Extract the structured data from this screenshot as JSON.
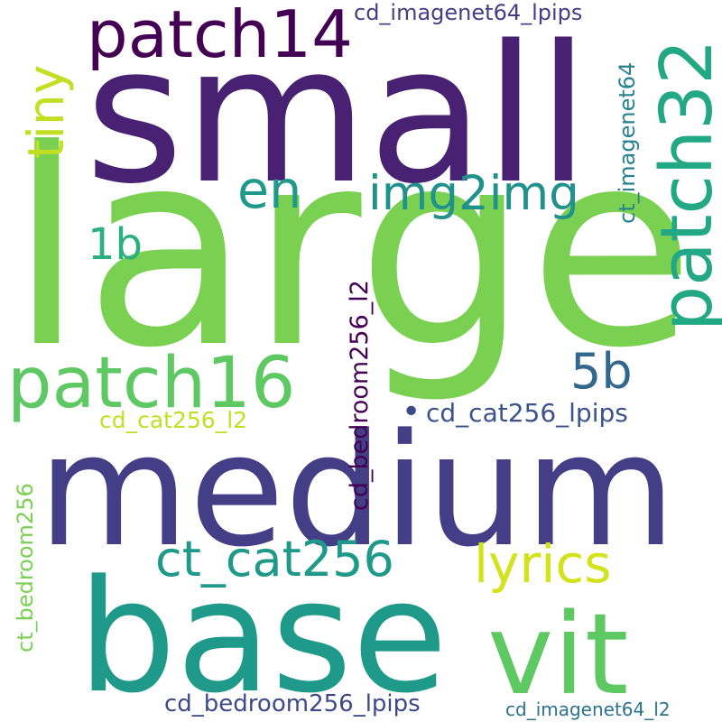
{
  "background": "#ffffff",
  "words": [
    {
      "text": "small",
      "color": "#482173"
    },
    {
      "text": "large",
      "color": "#7ad151"
    },
    {
      "text": "medium",
      "color": "#433e85"
    },
    {
      "text": "base",
      "color": "#1f9a8a"
    },
    {
      "text": "vit",
      "color": "#5ec962"
    },
    {
      "text": "patch14",
      "color": "#440154"
    },
    {
      "text": "patch32",
      "color": "#22a884"
    },
    {
      "text": "patch16",
      "color": "#5ec962"
    },
    {
      "text": "tiny",
      "color": "#c2df23"
    },
    {
      "text": "en",
      "color": "#1f9a8a"
    },
    {
      "text": "img2img",
      "color": "#21918c"
    },
    {
      "text": "1b",
      "color": "#2ab07f"
    },
    {
      "text": "5b",
      "color": "#31688e"
    },
    {
      "text": "lyrics",
      "color": "#d2e21b"
    },
    {
      "text": "ct_cat256",
      "color": "#1f9a8a"
    },
    {
      "text": "cd_imagenet64_lpips",
      "color": "#433e85"
    },
    {
      "text": "ct_imagenet64",
      "color": "#26828e"
    },
    {
      "text": "cd_bedroom256_l2",
      "color": "#440154"
    },
    {
      "text": "cd_cat256_lpips",
      "color": "#3b528b"
    },
    {
      "text": "cd_cat256_l2",
      "color": "#c2df23"
    },
    {
      "text": "ct_bedroom256",
      "color": "#7ad151"
    },
    {
      "text": "cd_bedroom256_lpips",
      "color": "#3e4989"
    },
    {
      "text": "cd_imagenet64_l2",
      "color": "#2c728e"
    },
    {
      "text": "•",
      "color": "#3e4989"
    }
  ]
}
